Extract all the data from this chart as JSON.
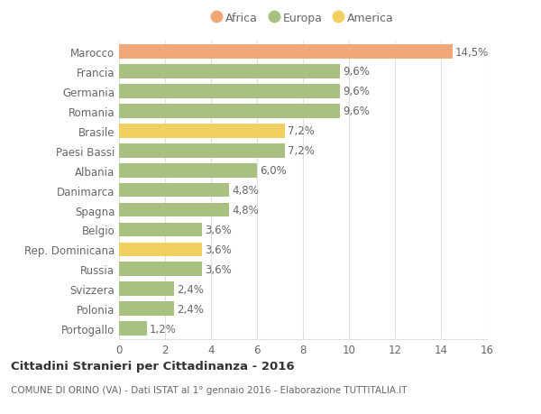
{
  "categories": [
    "Portogallo",
    "Polonia",
    "Svizzera",
    "Russia",
    "Rep. Dominicana",
    "Belgio",
    "Spagna",
    "Danimarca",
    "Albania",
    "Paesi Bassi",
    "Brasile",
    "Romania",
    "Germania",
    "Francia",
    "Marocco"
  ],
  "values": [
    1.2,
    2.4,
    2.4,
    3.6,
    3.6,
    3.6,
    4.8,
    4.8,
    6.0,
    7.2,
    7.2,
    9.6,
    9.6,
    9.6,
    14.5
  ],
  "colors": [
    "#a8c080",
    "#a8c080",
    "#a8c080",
    "#a8c080",
    "#f0d060",
    "#a8c080",
    "#a8c080",
    "#a8c080",
    "#a8c080",
    "#a8c080",
    "#f0d060",
    "#a8c080",
    "#a8c080",
    "#a8c080",
    "#f0a878"
  ],
  "labels": [
    "1,2%",
    "2,4%",
    "2,4%",
    "3,6%",
    "3,6%",
    "3,6%",
    "4,8%",
    "4,8%",
    "6,0%",
    "7,2%",
    "7,2%",
    "9,6%",
    "9,6%",
    "9,6%",
    "14,5%"
  ],
  "legend": [
    {
      "label": "Africa",
      "color": "#f0a878"
    },
    {
      "label": "Europa",
      "color": "#a8c080"
    },
    {
      "label": "America",
      "color": "#f0d060"
    }
  ],
  "xlim": [
    0,
    16
  ],
  "xticks": [
    0,
    2,
    4,
    6,
    8,
    10,
    12,
    14,
    16
  ],
  "title": "Cittadini Stranieri per Cittadinanza - 2016",
  "subtitle": "COMUNE DI ORINO (VA) - Dati ISTAT al 1° gennaio 2016 - Elaborazione TUTTITALIA.IT",
  "bg_color": "#ffffff",
  "grid_color": "#e0e0e0",
  "bar_height": 0.72,
  "label_fontsize": 8.5,
  "tick_fontsize": 8.5,
  "text_color": "#666666"
}
